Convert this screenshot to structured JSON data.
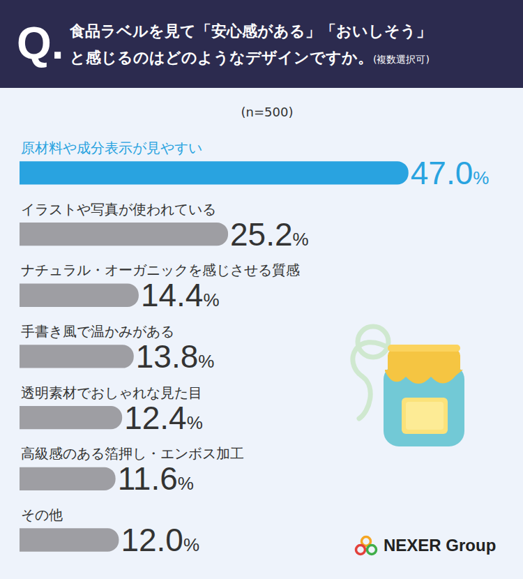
{
  "chart_data": {
    "type": "bar",
    "orientation": "horizontal",
    "title_prefix": "Q.",
    "title": "食品ラベルを見て「安心感がある」「おいしそう」と感じるのはどのようなデザインですか。",
    "title_note": "(複数選択可)",
    "sample_size": "(n=500)",
    "source": "NEXER Group",
    "categories": [
      "原材料や成分表示が見やすい",
      "イラストや写真が使われている",
      "ナチュラル・オーガニックを感じさせる質感",
      "手書き風で温かみがある",
      "透明素材でおしゃれな見た目",
      "高級感のある箔押し・エンボス加工",
      "その他"
    ],
    "values": [
      47.0,
      25.2,
      14.4,
      13.8,
      12.4,
      11.6,
      12.0
    ],
    "value_labels": [
      "47.0%",
      "25.2%",
      "14.4%",
      "13.8%",
      "12.4%",
      "11.6%",
      "12.0%"
    ],
    "colors": [
      "#29a3e0",
      "#9e9ea3",
      "#9e9ea3",
      "#9e9ea3",
      "#9e9ea3",
      "#9e9ea3",
      "#9e9ea3"
    ],
    "xlim": [
      0,
      60
    ],
    "data_labels": true,
    "tick_labels": false,
    "grid": false
  }
}
